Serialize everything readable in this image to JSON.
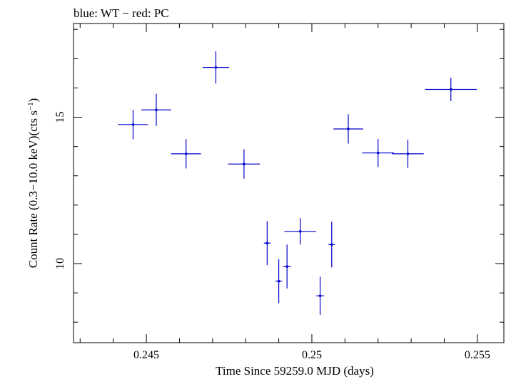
{
  "chart_data": {
    "type": "scatter",
    "title": "blue: WT − red: PC",
    "xlabel": "Time Since 59259.0 MJD (days)",
    "ylabel_main": "Count Rate (0.3−10.0 keV)(cts s",
    "ylabel_sup": "−1",
    "ylabel_end": ")",
    "xlim": [
      0.2428,
      0.2558
    ],
    "ylim": [
      7.3,
      18.2
    ],
    "xticks": [
      0.245,
      0.25,
      0.255
    ],
    "xtick_labels": [
      "0.245",
      "0.25",
      "0.255"
    ],
    "yticks": [
      10,
      15
    ],
    "ytick_labels": [
      "10",
      "15"
    ],
    "grid": false,
    "series": [
      {
        "color": "#0000cc",
        "points": [
          {
            "x": 0.2446,
            "y": 14.75,
            "xerr": 0.00045,
            "yerr": 0.5
          },
          {
            "x": 0.2453,
            "y": 15.25,
            "xerr": 0.00045,
            "yerr": 0.55
          },
          {
            "x": 0.2462,
            "y": 13.75,
            "xerr": 0.00045,
            "yerr": 0.5
          },
          {
            "x": 0.2471,
            "y": 16.7,
            "xerr": 0.0004,
            "yerr": 0.55
          },
          {
            "x": 0.24795,
            "y": 13.4,
            "xerr": 0.00048,
            "yerr": 0.5
          },
          {
            "x": 0.24865,
            "y": 10.7,
            "xerr": 0.0001,
            "yerr": 0.75
          },
          {
            "x": 0.249,
            "y": 9.4,
            "xerr": 0.0001,
            "yerr": 0.75
          },
          {
            "x": 0.24925,
            "y": 9.9,
            "xerr": 0.00012,
            "yerr": 0.75
          },
          {
            "x": 0.24965,
            "y": 11.1,
            "xerr": 0.00048,
            "yerr": 0.45
          },
          {
            "x": 0.25025,
            "y": 8.9,
            "xerr": 0.00012,
            "yerr": 0.65
          },
          {
            "x": 0.2506,
            "y": 10.65,
            "xerr": 0.0001,
            "yerr": 0.78
          },
          {
            "x": 0.2511,
            "y": 14.6,
            "xerr": 0.00045,
            "yerr": 0.5
          },
          {
            "x": 0.252,
            "y": 13.78,
            "xerr": 0.00048,
            "yerr": 0.48
          },
          {
            "x": 0.2529,
            "y": 13.75,
            "xerr": 0.00048,
            "yerr": 0.48
          },
          {
            "x": 0.2542,
            "y": 15.95,
            "xerr": 0.00078,
            "yerr": 0.4
          }
        ]
      }
    ]
  }
}
